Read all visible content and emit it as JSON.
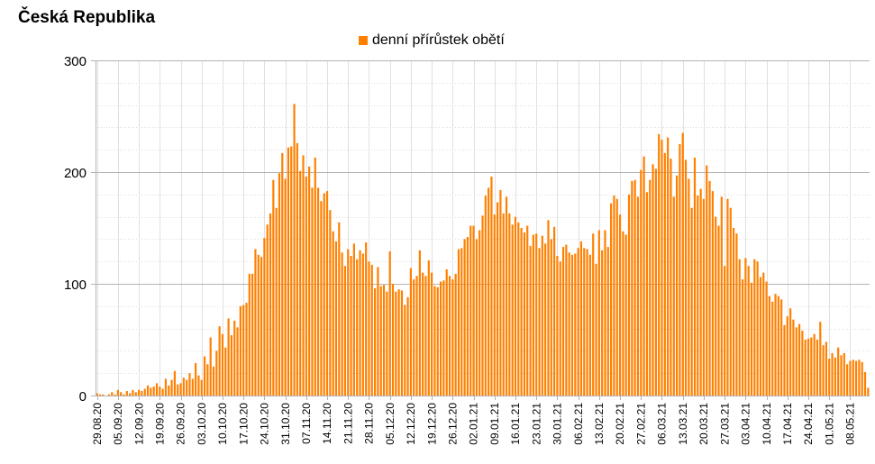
{
  "chart_data": {
    "type": "bar",
    "title": "Česká Republika",
    "legend_position": "top",
    "grid": true,
    "ylim": [
      0,
      300
    ],
    "y_ticks": [
      0,
      100,
      200,
      300
    ],
    "x_tick_labels": [
      "29.08.20",
      "05.09.20",
      "12.09.20",
      "19.09.20",
      "26.09.20",
      "03.10.20",
      "10.10.20",
      "17.10.20",
      "24.10.20",
      "31.10.20",
      "07.11.20",
      "14.11.20",
      "21.11.20",
      "28.11.20",
      "05.12.20",
      "12.12.20",
      "19.12.20",
      "26.12.20",
      "02.01.21",
      "09.01.21",
      "16.01.21",
      "23.01.21",
      "30.01.21",
      "06.02.21",
      "13.02.21",
      "20.02.21",
      "27.02.21",
      "06.03.21",
      "13.03.21",
      "20.03.21",
      "27.03.21",
      "03.04.21",
      "10.04.21",
      "17.04.21",
      "24.04.21",
      "01.05.21",
      "08.05.21"
    ],
    "series": [
      {
        "name": "denní přírůstek obětí",
        "color": "#ff8000",
        "values": [
          2,
          1,
          1,
          0,
          1,
          3,
          1,
          5,
          3,
          1,
          4,
          2,
          5,
          3,
          5,
          4,
          6,
          9,
          7,
          8,
          11,
          8,
          6,
          15,
          9,
          14,
          22,
          10,
          11,
          16,
          14,
          20,
          15,
          29,
          18,
          14,
          35,
          28,
          52,
          26,
          40,
          62,
          55,
          43,
          69,
          54,
          67,
          61,
          80,
          81,
          83,
          109,
          109,
          131,
          126,
          124,
          141,
          153,
          163,
          193,
          168,
          199,
          217,
          194,
          222,
          223,
          261,
          226,
          201,
          215,
          196,
          205,
          186,
          213,
          186,
          174,
          181,
          183,
          166,
          147,
          138,
          155,
          128,
          116,
          131,
          125,
          136,
          122,
          130,
          127,
          137,
          120,
          117,
          96,
          115,
          98,
          99,
          93,
          129,
          100,
          93,
          95,
          94,
          81,
          88,
          114,
          104,
          107,
          130,
          110,
          107,
          121,
          110,
          98,
          97,
          102,
          103,
          113,
          107,
          104,
          109,
          131,
          132,
          140,
          142,
          152,
          152,
          140,
          148,
          161,
          179,
          186,
          196,
          162,
          173,
          184,
          163,
          178,
          163,
          153,
          160,
          155,
          150,
          146,
          152,
          134,
          144,
          145,
          132,
          143,
          136,
          157,
          140,
          151,
          125,
          120,
          133,
          135,
          128,
          126,
          127,
          132,
          138,
          132,
          131,
          126,
          145,
          118,
          148,
          130,
          148,
          133,
          172,
          179,
          176,
          162,
          147,
          144,
          180,
          192,
          193,
          178,
          202,
          214,
          182,
          193,
          207,
          203,
          234,
          229,
          217,
          231,
          212,
          178,
          197,
          225,
          235,
          211,
          194,
          168,
          213,
          179,
          185,
          176,
          206,
          192,
          183,
          160,
          152,
          178,
          116,
          176,
          168,
          150,
          145,
          122,
          104,
          123,
          116,
          101,
          122,
          120,
          106,
          110,
          102,
          89,
          84,
          91,
          89,
          86,
          63,
          71,
          78,
          68,
          61,
          64,
          58,
          50,
          51,
          52,
          55,
          50,
          66,
          45,
          48,
          33,
          38,
          34,
          43,
          36,
          38,
          28,
          31,
          32,
          31,
          32,
          30,
          21,
          7
        ]
      }
    ]
  }
}
